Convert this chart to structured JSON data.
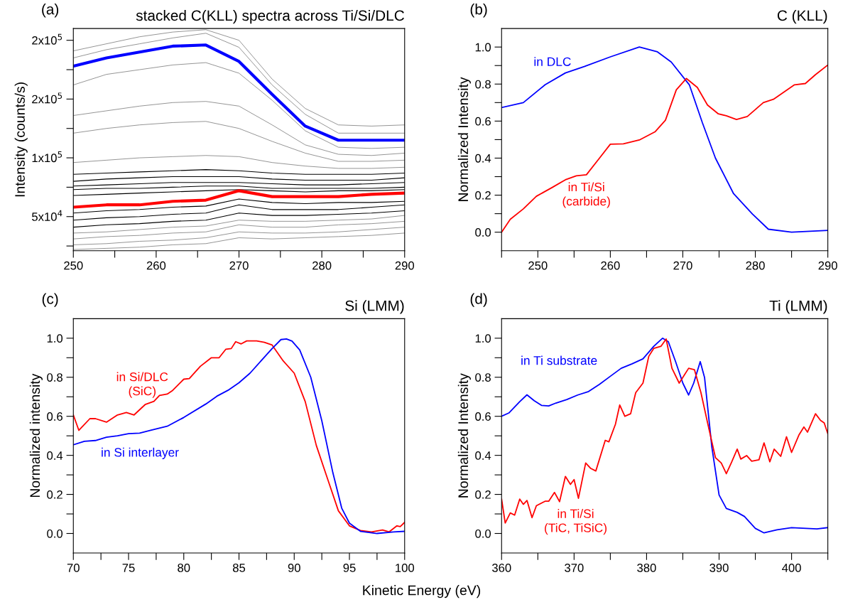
{
  "chart_data": [
    {
      "type": "line",
      "title": "stacked C(KLL) spectra across Ti/Si/DLC",
      "ylabel": "Intensity (counts/s)",
      "annotations": [
        "(a)"
      ],
      "x": [
        250,
        254,
        258,
        262,
        266,
        270,
        274,
        278,
        282,
        286,
        290
      ],
      "xlim": [
        250,
        290
      ],
      "xticks": [
        250,
        {
          "value": 255,
          "label": null
        },
        260,
        {
          "value": 265,
          "label": null
        },
        270,
        {
          "value": 275,
          "label": null
        },
        280,
        {
          "value": 285,
          "label": null
        },
        290
      ],
      "ylim": [
        21000,
        210000
      ],
      "yticks": [
        {
          "value": 25000,
          "label": null
        },
        {
          "value": 50000,
          "label": "5x10$^{4}$"
        },
        {
          "value": 75000,
          "label": null
        },
        {
          "value": 100000,
          "label": "1x10$^{5}$"
        },
        {
          "value": 125000,
          "label": null
        },
        {
          "value": 150000,
          "label": "2x10$^{5}$"
        },
        {
          "value": 175000,
          "label": null
        },
        {
          "value": 200000,
          "label": "2x10$^{5}$"
        }
      ],
      "series": [
        {
          "color": "#808080",
          "values": [
            191000,
            197000,
            203000,
            207000,
            209000,
            200000,
            167000,
            142000,
            128000,
            127000,
            128000
          ]
        },
        {
          "color": "#808080",
          "values": [
            185000,
            192000,
            197000,
            202000,
            206000,
            194000,
            162000,
            137000,
            121000,
            121000,
            121000
          ]
        },
        {
          "color": "#808080",
          "values": [
            162000,
            171000,
            175000,
            179000,
            181000,
            172000,
            149000,
            123000,
            109000,
            108000,
            109000
          ]
        },
        {
          "color": "#808080",
          "values": [
            136000,
            140000,
            144000,
            147000,
            148000,
            144000,
            128000,
            111000,
            103000,
            102000,
            104000
          ]
        },
        {
          "color": "#808080",
          "values": [
            121000,
            125000,
            128000,
            130000,
            131000,
            125000,
            114000,
            104000,
            97000,
            97000,
            98000
          ]
        },
        {
          "color": "#808080",
          "values": [
            96000,
            98000,
            100000,
            101000,
            102000,
            101000,
            96000,
            93000,
            91000,
            91000,
            92000
          ]
        },
        {
          "color": "#000000",
          "values": [
            86000,
            87000,
            88000,
            89000,
            90000,
            89000,
            87000,
            86000,
            86000,
            86000,
            87000
          ]
        },
        {
          "color": "#000000",
          "values": [
            80000,
            82000,
            83000,
            84000,
            84000,
            84000,
            82000,
            81000,
            81000,
            81000,
            83000
          ]
        },
        {
          "color": "#000000",
          "values": [
            76000,
            77000,
            78000,
            79000,
            79000,
            79000,
            78000,
            77000,
            77000,
            78000,
            79000
          ]
        },
        {
          "color": "#000000",
          "values": [
            73000,
            74000,
            74000,
            75000,
            76000,
            76000,
            74000,
            74000,
            74000,
            74000,
            75000
          ]
        },
        {
          "color": "#000000",
          "values": [
            68000,
            69000,
            70000,
            71000,
            72000,
            73000,
            72000,
            71000,
            72000,
            72000,
            73000
          ]
        },
        {
          "color": "#000000",
          "values": [
            53000,
            55000,
            56000,
            58000,
            59000,
            65000,
            62000,
            61000,
            62000,
            62000,
            63000
          ]
        },
        {
          "color": "#000000",
          "values": [
            47000,
            49000,
            50000,
            52000,
            53000,
            60000,
            56000,
            56000,
            56000,
            58000,
            60000
          ]
        },
        {
          "color": "#000000",
          "values": [
            41000,
            43000,
            44000,
            46000,
            47000,
            53000,
            51000,
            51000,
            52000,
            53000,
            55000
          ]
        },
        {
          "color": "#808080",
          "values": [
            36000,
            37000,
            39000,
            41000,
            42000,
            47000,
            46000,
            46000,
            47000,
            48000,
            51000
          ]
        },
        {
          "color": "#808080",
          "values": [
            31000,
            33000,
            34000,
            36000,
            37000,
            43000,
            41000,
            41000,
            43000,
            44000,
            46000
          ]
        },
        {
          "color": "#808080",
          "values": [
            26000,
            27000,
            29000,
            30000,
            32000,
            37000,
            36000,
            36000,
            37000,
            39000,
            41000
          ]
        },
        {
          "color": "#808080",
          "values": [
            22000,
            23000,
            24000,
            26000,
            27000,
            32000,
            31000,
            32000,
            33000,
            34000,
            36000
          ]
        },
        {
          "color": "#0000ff",
          "values": [
            178000,
            185000,
            190000,
            195000,
            196000,
            182000,
            154000,
            127000,
            115000,
            115000,
            115000
          ]
        },
        {
          "color": "#ff0000",
          "values": [
            58000,
            60000,
            60000,
            63000,
            64000,
            72000,
            67000,
            67000,
            67000,
            69000,
            70000
          ]
        }
      ]
    },
    {
      "type": "line",
      "title": "C (KLL)",
      "ylabel": "Normalized Intensity",
      "annotations": [
        "(b)"
      ],
      "xlim": [
        245,
        290
      ],
      "xticks": [
        {
          "value": 245,
          "label": null
        },
        250,
        {
          "value": 255,
          "label": null
        },
        260,
        {
          "value": 265,
          "label": null
        },
        270,
        {
          "value": 275,
          "label": null
        },
        280,
        {
          "value": 285,
          "label": null
        },
        290
      ],
      "ylim": [
        -0.1,
        1.1
      ],
      "yticks": [
        {
          "value": 0,
          "label": "0.0"
        },
        {
          "value": 0.1,
          "label": null
        },
        0.2,
        {
          "value": 0.3,
          "label": null
        },
        0.4,
        {
          "value": 0.5,
          "label": null
        },
        0.6,
        {
          "value": 0.7,
          "label": null
        },
        0.8,
        {
          "value": 0.9,
          "label": null
        },
        {
          "value": 1,
          "label": "1.0"
        }
      ],
      "series": [
        {
          "name": "in DLC",
          "color": "#0000ff",
          "x": [
            245,
            248,
            251,
            253.8,
            256.4,
            260,
            264,
            266.5,
            268.4,
            270.9,
            272.7,
            274.5,
            277,
            279.6,
            281.8,
            285,
            290
          ],
          "values": [
            0.673,
            0.7,
            0.796,
            0.86,
            0.895,
            0.947,
            1.0,
            0.974,
            0.919,
            0.796,
            0.591,
            0.4,
            0.208,
            0.098,
            0.016,
            0.0,
            0.01
          ]
        },
        {
          "name": "in Ti/Si\n(carbide)",
          "color": "#ff0000",
          "x": [
            245,
            246.2,
            248,
            249.8,
            252,
            253.8,
            255.3,
            256.7,
            258.5,
            260,
            261.8,
            264,
            266.2,
            267.6,
            269.1,
            270.5,
            272,
            273.4,
            274.9,
            276,
            277.4,
            278.9,
            281.1,
            282.5,
            285.4,
            286.9,
            288.3,
            290
          ],
          "values": [
            0.0,
            0.07,
            0.126,
            0.194,
            0.242,
            0.283,
            0.304,
            0.31,
            0.4,
            0.475,
            0.477,
            0.498,
            0.543,
            0.605,
            0.769,
            0.83,
            0.782,
            0.687,
            0.639,
            0.629,
            0.609,
            0.625,
            0.7,
            0.718,
            0.796,
            0.803,
            0.851,
            0.903
          ]
        }
      ]
    },
    {
      "type": "line",
      "title": "Si (LMM)",
      "ylabel": "Normalized intensity",
      "xlabel": "Kinetic Energy (eV)",
      "annotations": [
        "(c)"
      ],
      "xlim": [
        70,
        100
      ],
      "xticks": [
        70,
        {
          "value": 72.5,
          "label": null
        },
        75,
        {
          "value": 77.5,
          "label": null
        },
        80,
        {
          "value": 82.5,
          "label": null
        },
        85,
        {
          "value": 87.5,
          "label": null
        },
        90,
        {
          "value": 92.5,
          "label": null
        },
        95,
        {
          "value": 97.5,
          "label": null
        },
        100
      ],
      "ylim": [
        -0.1,
        1.1
      ],
      "yticks": [
        {
          "value": 0,
          "label": "0.0"
        },
        {
          "value": 0.1,
          "label": null
        },
        0.2,
        {
          "value": 0.3,
          "label": null
        },
        0.4,
        {
          "value": 0.5,
          "label": null
        },
        0.6,
        {
          "value": 0.7,
          "label": null
        },
        0.8,
        {
          "value": 0.9,
          "label": null
        },
        {
          "value": 1,
          "label": "1.0"
        }
      ],
      "series": [
        {
          "name": "in Si/DLC\n(SiC)",
          "color": "#ff0000",
          "x": [
            70,
            70.5,
            71.5,
            72,
            73,
            74,
            74.8,
            75.5,
            76.5,
            77.3,
            77.8,
            78.5,
            79,
            80,
            80.5,
            81.5,
            82.5,
            83.2,
            83.8,
            84.3,
            84.7,
            85.2,
            85.7,
            86.6,
            87.3,
            88,
            89,
            90,
            91,
            92,
            93,
            94,
            95,
            96,
            97,
            98,
            98.6,
            99.3,
            99.6,
            100
          ],
          "values": [
            0.607,
            0.528,
            0.588,
            0.588,
            0.57,
            0.607,
            0.619,
            0.607,
            0.66,
            0.677,
            0.707,
            0.714,
            0.733,
            0.79,
            0.793,
            0.856,
            0.9,
            0.9,
            0.943,
            0.947,
            0.982,
            0.971,
            0.986,
            0.986,
            0.979,
            0.965,
            0.884,
            0.821,
            0.675,
            0.451,
            0.283,
            0.116,
            0.039,
            0.015,
            0.008,
            0.018,
            0.008,
            0.039,
            0.035,
            0.057
          ]
        },
        {
          "name": "in Si interlayer",
          "color": "#0000ff",
          "x": [
            70,
            71,
            72,
            73,
            74,
            75,
            76,
            77,
            78.5,
            80,
            82,
            83,
            84,
            85,
            86,
            87,
            88,
            88.8,
            89.3,
            89.8,
            90.5,
            91.5,
            92.5,
            93.5,
            94.3,
            95,
            96,
            97.5,
            99,
            100
          ],
          "values": [
            0.454,
            0.472,
            0.476,
            0.493,
            0.5,
            0.511,
            0.514,
            0.528,
            0.549,
            0.594,
            0.663,
            0.703,
            0.733,
            0.772,
            0.821,
            0.884,
            0.947,
            0.993,
            0.996,
            0.985,
            0.94,
            0.8,
            0.577,
            0.311,
            0.13,
            0.053,
            0.011,
            0.0,
            0.008,
            0.011
          ]
        }
      ]
    },
    {
      "type": "line",
      "title": "Ti (LMM)",
      "ylabel": "Normalized Intensity",
      "annotations": [
        "(d)"
      ],
      "xlim": [
        360,
        405
      ],
      "xticks": [
        360,
        {
          "value": 365,
          "label": null
        },
        370,
        {
          "value": 375,
          "label": null
        },
        380,
        {
          "value": 385,
          "label": null
        },
        390,
        {
          "value": 395,
          "label": null
        },
        400,
        {
          "value": 405,
          "label": null
        }
      ],
      "ylim": [
        -0.1,
        1.1
      ],
      "yticks": [
        {
          "value": 0,
          "label": "0.0"
        },
        {
          "value": 0.1,
          "label": null
        },
        0.2,
        {
          "value": 0.3,
          "label": null
        },
        0.4,
        {
          "value": 0.5,
          "label": null
        },
        0.6,
        {
          "value": 0.7,
          "label": null
        },
        0.8,
        {
          "value": 0.9,
          "label": null
        },
        {
          "value": 1,
          "label": "1.0"
        }
      ],
      "series": [
        {
          "name": "in Ti substrate",
          "color": "#0000ff",
          "x": [
            360,
            361,
            362.5,
            363.5,
            364.5,
            365.5,
            366.5,
            367.5,
            369,
            370.5,
            372,
            373.5,
            375,
            376.5,
            378,
            379.5,
            381,
            382.2,
            383,
            384,
            385,
            385.8,
            386.5,
            387.4,
            388,
            389,
            390,
            391,
            392.5,
            393.5,
            395,
            396.2,
            398,
            400,
            402,
            403.5,
            405
          ],
          "values": [
            0.6,
            0.617,
            0.675,
            0.71,
            0.68,
            0.656,
            0.653,
            0.668,
            0.686,
            0.709,
            0.727,
            0.764,
            0.805,
            0.846,
            0.869,
            0.894,
            0.959,
            1.0,
            0.982,
            0.88,
            0.77,
            0.709,
            0.77,
            0.88,
            0.798,
            0.443,
            0.197,
            0.128,
            0.108,
            0.087,
            0.026,
            0.003,
            0.019,
            0.03,
            0.026,
            0.023,
            0.03
          ]
        },
        {
          "name": "in Ti/Si\n(TiC, TiSiC)",
          "color": "#ff0000",
          "x": [
            360,
            360.5,
            361.2,
            361.8,
            362.5,
            363,
            363.5,
            364.2,
            364.8,
            366,
            366.5,
            367.3,
            368,
            368.8,
            369.5,
            370,
            370.6,
            371.6,
            372.3,
            373,
            374.3,
            374.8,
            375.7,
            376.3,
            377,
            377.8,
            378.5,
            379.5,
            380.3,
            381,
            382,
            382.7,
            383.5,
            384.5,
            385.8,
            386.6,
            387.5,
            388.5,
            389.5,
            390.3,
            391,
            391.7,
            392.5,
            393,
            393.8,
            394.5,
            395.5,
            396.2,
            397,
            397.6,
            398.5,
            399.3,
            400,
            401,
            401.7,
            402.2,
            403.3,
            404,
            404.5,
            405
          ],
          "values": [
            0.176,
            0.053,
            0.105,
            0.094,
            0.176,
            0.149,
            0.169,
            0.081,
            0.142,
            0.165,
            0.165,
            0.21,
            0.163,
            0.292,
            0.251,
            0.276,
            0.18,
            0.361,
            0.333,
            0.32,
            0.477,
            0.469,
            0.559,
            0.658,
            0.6,
            0.613,
            0.721,
            0.77,
            0.907,
            0.948,
            0.959,
            0.996,
            0.846,
            0.77,
            0.846,
            0.839,
            0.721,
            0.552,
            0.388,
            0.361,
            0.306,
            0.363,
            0.432,
            0.381,
            0.399,
            0.37,
            0.377,
            0.464,
            0.367,
            0.432,
            0.395,
            0.495,
            0.415,
            0.503,
            0.545,
            0.519,
            0.613,
            0.579,
            0.566,
            0.511
          ]
        }
      ]
    }
  ]
}
